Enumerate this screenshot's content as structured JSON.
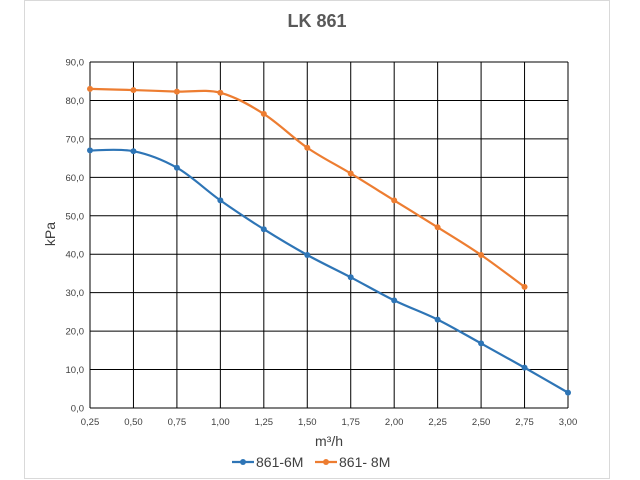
{
  "chart_data": {
    "type": "line",
    "title": "LK 861",
    "xlabel": "m³/h",
    "ylabel": "kPa",
    "x_ticks": [
      "0,25",
      "0,50",
      "0,75",
      "1,00",
      "1,25",
      "1,50",
      "1,75",
      "2,00",
      "2,25",
      "2,50",
      "2,75",
      "3,00"
    ],
    "y_ticks": [
      "0,0",
      "10,0",
      "20,0",
      "30,0",
      "40,0",
      "50,0",
      "60,0",
      "70,0",
      "80,0",
      "90,0"
    ],
    "xlim": [
      0.25,
      3.0
    ],
    "ylim": [
      0,
      90
    ],
    "grid": true,
    "legend_position": "bottom",
    "series": [
      {
        "name": "861-6M",
        "color": "#2e75b6",
        "x": [
          0.25,
          0.5,
          0.75,
          1.0,
          1.25,
          1.5,
          1.75,
          2.0,
          2.25,
          2.5,
          2.75,
          3.0
        ],
        "y": [
          67.0,
          66.8,
          62.5,
          54.0,
          46.5,
          39.8,
          34.0,
          28.0,
          23.0,
          16.8,
          10.5,
          4.0
        ]
      },
      {
        "name": "861- 8M",
        "color": "#ed7d31",
        "x": [
          0.25,
          0.5,
          0.75,
          1.0,
          1.25,
          1.5,
          1.75,
          2.0,
          2.25,
          2.5,
          2.75
        ],
        "y": [
          83.0,
          82.7,
          82.3,
          82.0,
          76.5,
          67.7,
          61.0,
          54.0,
          47.0,
          39.8,
          31.5
        ]
      }
    ]
  }
}
